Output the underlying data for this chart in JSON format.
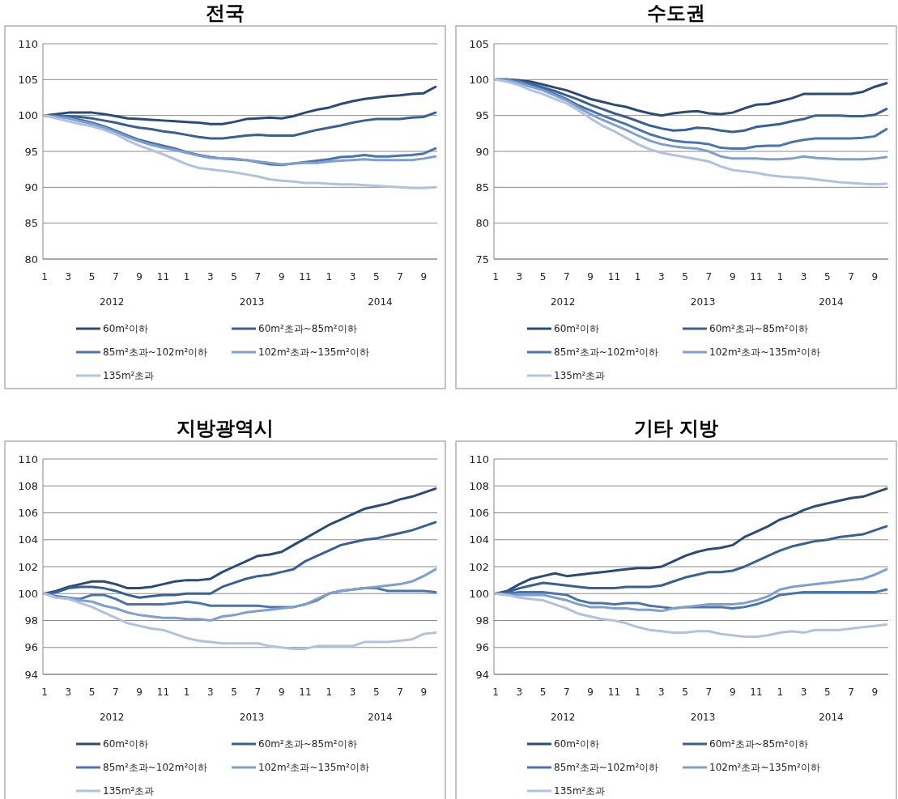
{
  "chart_data": [
    {
      "type": "line",
      "title": "전국",
      "categories": [
        "1",
        null,
        "3",
        null,
        "5",
        null,
        "7",
        null,
        "9",
        null,
        "11",
        null,
        "1",
        null,
        "3",
        null,
        "5",
        null,
        "7",
        null,
        "9",
        null,
        "11",
        null,
        "1",
        null,
        "3",
        null,
        "5",
        null,
        "7",
        null,
        "9",
        null
      ],
      "annotations": [
        "2012",
        "2013",
        "2014"
      ],
      "ylim": [
        80,
        110
      ],
      "yticks": [
        80,
        85,
        90,
        95,
        100,
        105,
        110
      ],
      "grid": "y",
      "legend": "bottom",
      "line_style": "solid",
      "series": [
        {
          "name": "60m²이하",
          "color": "#2b4a75",
          "values": [
            100,
            100.2,
            100.4,
            100.4,
            100.4,
            100.2,
            99.9,
            99.6,
            99.5,
            99.4,
            99.3,
            99.2,
            99.1,
            99.0,
            98.8,
            98.8,
            99.1,
            99.5,
            99.6,
            99.7,
            99.6,
            99.9,
            100.4,
            100.8,
            101.1,
            101.6,
            102.0,
            102.3,
            102.5,
            102.7,
            102.8,
            103.0,
            103.1,
            104.0
          ]
        },
        {
          "name": "60m²초과~85m²이하",
          "color": "#3a5f94",
          "values": [
            100,
            100,
            99.9,
            99.8,
            99.6,
            99.3,
            99.0,
            98.6,
            98.3,
            98.1,
            97.8,
            97.6,
            97.3,
            97.0,
            96.8,
            96.8,
            97.0,
            97.2,
            97.3,
            97.2,
            97.2,
            97.2,
            97.6,
            98.0,
            98.3,
            98.6,
            99.0,
            99.3,
            99.5,
            99.5,
            99.5,
            99.7,
            99.8,
            100.4
          ]
        },
        {
          "name": "85m²초과~102m²이하",
          "color": "#4a74b0",
          "values": [
            100,
            99.9,
            99.7,
            99.4,
            99.0,
            98.5,
            97.9,
            97.2,
            96.6,
            96.2,
            95.8,
            95.4,
            94.9,
            94.5,
            94.2,
            94.0,
            93.9,
            93.8,
            93.5,
            93.2,
            93.1,
            93.3,
            93.5,
            93.7,
            93.9,
            94.2,
            94.3,
            94.5,
            94.3,
            94.3,
            94.4,
            94.5,
            94.7,
            95.4
          ]
        },
        {
          "name": "102m²초과~135m²이하",
          "color": "#7f9fcc",
          "values": [
            100,
            99.8,
            99.6,
            99.2,
            98.8,
            98.3,
            97.7,
            97.0,
            96.4,
            95.9,
            95.5,
            95.2,
            94.8,
            94.4,
            94.1,
            94.0,
            94.0,
            93.8,
            93.6,
            93.4,
            93.2,
            93.3,
            93.4,
            93.4,
            93.6,
            93.7,
            93.8,
            93.9,
            93.8,
            93.8,
            93.8,
            93.8,
            94.0,
            94.3
          ]
        },
        {
          "name": "135m²초과",
          "color": "#b3c1dc",
          "values": [
            100,
            99.6,
            99.2,
            98.8,
            98.5,
            98.0,
            97.4,
            96.5,
            95.8,
            95.2,
            94.6,
            93.9,
            93.2,
            92.7,
            92.5,
            92.3,
            92.1,
            91.8,
            91.5,
            91.1,
            90.9,
            90.8,
            90.6,
            90.6,
            90.5,
            90.4,
            90.4,
            90.3,
            90.2,
            90.1,
            90.0,
            89.9,
            89.9,
            90.0
          ]
        }
      ]
    },
    {
      "type": "line",
      "title": "수도권",
      "categories": [
        "1",
        null,
        "3",
        null,
        "5",
        null,
        "7",
        null,
        "9",
        null,
        "11",
        null,
        "1",
        null,
        "3",
        null,
        "5",
        null,
        "7",
        null,
        "9",
        null,
        "11",
        null,
        "1",
        null,
        "3",
        null,
        "5",
        null,
        "7",
        null,
        "9",
        null
      ],
      "annotations": [
        "2012",
        "2013",
        "2014"
      ],
      "ylim": [
        75,
        105
      ],
      "yticks": [
        75,
        80,
        85,
        90,
        95,
        100,
        105
      ],
      "grid": "y",
      "legend": "bottom",
      "line_style": "solid",
      "series": [
        {
          "name": "60m²이하",
          "color": "#2b4a75",
          "values": [
            100,
            100,
            99.9,
            99.7,
            99.3,
            98.9,
            98.5,
            97.9,
            97.3,
            96.9,
            96.5,
            96.2,
            95.7,
            95.3,
            95.0,
            95.3,
            95.5,
            95.6,
            95.3,
            95.2,
            95.4,
            96.0,
            96.5,
            96.6,
            97.0,
            97.4,
            98.0,
            98.0,
            98.0,
            98.0,
            98.0,
            98.3,
            99.0,
            99.5
          ]
        },
        {
          "name": "60m²초과~85m²이하",
          "color": "#3a5f94",
          "values": [
            100,
            100,
            99.8,
            99.4,
            98.9,
            98.4,
            97.8,
            97.2,
            96.5,
            95.9,
            95.3,
            94.8,
            94.2,
            93.6,
            93.2,
            92.9,
            93.0,
            93.3,
            93.2,
            92.9,
            92.7,
            92.9,
            93.4,
            93.6,
            93.8,
            94.2,
            94.5,
            95.0,
            95.0,
            95.0,
            94.9,
            94.9,
            95.1,
            95.9
          ]
        },
        {
          "name": "85m²초과~102m²이하",
          "color": "#4a74b0",
          "values": [
            100,
            100,
            99.7,
            99.2,
            98.6,
            98.0,
            97.3,
            96.4,
            95.7,
            95.0,
            94.4,
            93.8,
            93.1,
            92.4,
            91.9,
            91.5,
            91.3,
            91.2,
            91.0,
            90.5,
            90.4,
            90.4,
            90.7,
            90.8,
            90.8,
            91.3,
            91.6,
            91.8,
            91.8,
            91.8,
            91.8,
            91.9,
            92.1,
            93.1
          ]
        },
        {
          "name": "102m²초과~135m²이하",
          "color": "#7f9fcc",
          "values": [
            100,
            99.9,
            99.5,
            99.0,
            98.5,
            97.8,
            97.1,
            96.1,
            95.2,
            94.4,
            93.7,
            93.0,
            92.2,
            91.5,
            91.0,
            90.7,
            90.5,
            90.4,
            90.0,
            89.3,
            89.0,
            89.0,
            89.0,
            88.9,
            88.9,
            89.0,
            89.3,
            89.1,
            89.0,
            88.9,
            88.9,
            88.9,
            89.0,
            89.2
          ]
        },
        {
          "name": "135m²초과",
          "color": "#b3c1dc",
          "values": [
            100,
            99.7,
            99.2,
            98.5,
            98.0,
            97.3,
            96.7,
            95.7,
            94.6,
            93.6,
            92.8,
            91.9,
            91.0,
            90.3,
            89.8,
            89.5,
            89.2,
            88.9,
            88.6,
            87.9,
            87.4,
            87.2,
            87.0,
            86.7,
            86.5,
            86.4,
            86.3,
            86.1,
            85.9,
            85.7,
            85.6,
            85.5,
            85.4,
            85.5
          ]
        }
      ]
    },
    {
      "type": "line",
      "title": "지방광역시",
      "categories": [
        "1",
        null,
        "3",
        null,
        "5",
        null,
        "7",
        null,
        "9",
        null,
        "11",
        null,
        "1",
        null,
        "3",
        null,
        "5",
        null,
        "7",
        null,
        "9",
        null,
        "11",
        null,
        "1",
        null,
        "3",
        null,
        "5",
        null,
        "7",
        null,
        "9",
        null
      ],
      "annotations": [
        "2012",
        "2013",
        "2014"
      ],
      "ylim": [
        94,
        110
      ],
      "yticks": [
        94,
        96,
        98,
        100,
        102,
        104,
        106,
        108,
        110
      ],
      "grid": "y",
      "legend": "bottom",
      "line_style": "solid",
      "series": [
        {
          "name": "60m²이하",
          "color": "#2b4a75",
          "values": [
            100,
            100.2,
            100.5,
            100.7,
            100.9,
            100.9,
            100.7,
            100.4,
            100.4,
            100.5,
            100.7,
            100.9,
            101.0,
            101.0,
            101.1,
            101.6,
            102.0,
            102.4,
            102.8,
            102.9,
            103.1,
            103.6,
            104.1,
            104.6,
            105.1,
            105.5,
            105.9,
            106.3,
            106.5,
            106.7,
            107.0,
            107.2,
            107.5,
            107.8
          ]
        },
        {
          "name": "60m²초과~85m²이하",
          "color": "#3a5f94",
          "values": [
            100,
            100.1,
            100.4,
            100.5,
            100.5,
            100.4,
            100.2,
            99.9,
            99.7,
            99.8,
            99.9,
            99.9,
            100.0,
            100.0,
            100.0,
            100.5,
            100.8,
            101.1,
            101.3,
            101.4,
            101.6,
            101.8,
            102.4,
            102.8,
            103.2,
            103.6,
            103.8,
            104.0,
            104.1,
            104.3,
            104.5,
            104.7,
            105.0,
            105.3
          ]
        },
        {
          "name": "85m²초과~102m²이하",
          "color": "#4a74b0",
          "values": [
            100,
            99.8,
            99.7,
            99.6,
            99.9,
            99.9,
            99.6,
            99.2,
            99.2,
            99.2,
            99.2,
            99.3,
            99.4,
            99.3,
            99.1,
            99.1,
            99.1,
            99.1,
            99.1,
            99.0,
            99.0,
            99.0,
            99.2,
            99.5,
            100.0,
            100.2,
            100.3,
            100.4,
            100.4,
            100.2,
            100.2,
            100.2,
            100.2,
            100.1
          ]
        },
        {
          "name": "102m²초과~135m²이하",
          "color": "#7f9fcc",
          "values": [
            100,
            99.7,
            99.7,
            99.5,
            99.4,
            99.1,
            98.9,
            98.6,
            98.4,
            98.3,
            98.2,
            98.2,
            98.1,
            98.1,
            98.0,
            98.3,
            98.4,
            98.6,
            98.7,
            98.8,
            98.9,
            99.0,
            99.2,
            99.6,
            100.0,
            100.2,
            100.3,
            100.4,
            100.5,
            100.6,
            100.7,
            100.9,
            101.3,
            101.8
          ]
        },
        {
          "name": "135m²초과",
          "color": "#b3c1dc",
          "values": [
            100,
            99.7,
            99.6,
            99.3,
            99.0,
            98.6,
            98.2,
            97.8,
            97.6,
            97.4,
            97.3,
            97.0,
            96.7,
            96.5,
            96.4,
            96.3,
            96.3,
            96.3,
            96.3,
            96.1,
            96.0,
            95.9,
            95.9,
            96.1,
            96.1,
            96.1,
            96.1,
            96.4,
            96.4,
            96.4,
            96.5,
            96.6,
            97.0,
            97.1
          ]
        }
      ]
    },
    {
      "type": "line",
      "title": "기타 지방",
      "categories": [
        "1",
        null,
        "3",
        null,
        "5",
        null,
        "7",
        null,
        "9",
        null,
        "11",
        null,
        "1",
        null,
        "3",
        null,
        "5",
        null,
        "7",
        null,
        "9",
        null,
        "11",
        null,
        "1",
        null,
        "3",
        null,
        "5",
        null,
        "7",
        null,
        "9",
        null
      ],
      "annotations": [
        "2012",
        "2013",
        "2014"
      ],
      "ylim": [
        94,
        110
      ],
      "yticks": [
        94,
        96,
        98,
        100,
        102,
        104,
        106,
        108,
        110
      ],
      "grid": "y",
      "legend": "bottom",
      "line_style": "solid",
      "series": [
        {
          "name": "60m²이하",
          "color": "#2b4a75",
          "values": [
            100,
            100.2,
            100.7,
            101.1,
            101.3,
            101.5,
            101.3,
            101.4,
            101.5,
            101.6,
            101.7,
            101.8,
            101.9,
            101.9,
            102.0,
            102.4,
            102.8,
            103.1,
            103.3,
            103.4,
            103.6,
            104.2,
            104.6,
            105.0,
            105.5,
            105.8,
            106.2,
            106.5,
            106.7,
            106.9,
            107.1,
            107.2,
            107.5,
            107.8
          ]
        },
        {
          "name": "60m²초과~85m²이하",
          "color": "#3a5f94",
          "values": [
            100,
            100.1,
            100.4,
            100.6,
            100.8,
            100.7,
            100.6,
            100.5,
            100.4,
            100.4,
            100.4,
            100.5,
            100.5,
            100.5,
            100.6,
            100.9,
            101.2,
            101.4,
            101.6,
            101.6,
            101.7,
            102.0,
            102.4,
            102.8,
            103.2,
            103.5,
            103.7,
            103.9,
            104.0,
            104.2,
            104.3,
            104.4,
            104.7,
            105.0
          ]
        },
        {
          "name": "85m²초과~102m²이하",
          "color": "#4a74b0",
          "values": [
            100,
            100,
            100.1,
            100.1,
            100.1,
            100.0,
            99.9,
            99.5,
            99.3,
            99.3,
            99.2,
            99.3,
            99.3,
            99.1,
            99.0,
            98.9,
            99.0,
            99.0,
            99.0,
            99.0,
            98.9,
            99.0,
            99.2,
            99.5,
            99.9,
            100.0,
            100.1,
            100.1,
            100.1,
            100.1,
            100.1,
            100.1,
            100.1,
            100.3
          ]
        },
        {
          "name": "102m²초과~135m²이하",
          "color": "#7f9fcc",
          "values": [
            100,
            99.9,
            99.9,
            99.9,
            99.9,
            99.7,
            99.5,
            99.2,
            99.0,
            99.0,
            98.9,
            98.9,
            98.8,
            98.8,
            98.7,
            98.9,
            99.0,
            99.1,
            99.2,
            99.2,
            99.2,
            99.3,
            99.5,
            99.8,
            100.3,
            100.5,
            100.6,
            100.7,
            100.8,
            100.9,
            101.0,
            101.1,
            101.4,
            101.8
          ]
        },
        {
          "name": "135m²초과",
          "color": "#b3c1dc",
          "values": [
            100,
            99.9,
            99.7,
            99.6,
            99.5,
            99.2,
            98.9,
            98.5,
            98.3,
            98.1,
            98.0,
            97.8,
            97.5,
            97.3,
            97.2,
            97.1,
            97.1,
            97.2,
            97.2,
            97.0,
            96.9,
            96.8,
            96.8,
            96.9,
            97.1,
            97.2,
            97.1,
            97.3,
            97.3,
            97.3,
            97.4,
            97.5,
            97.6,
            97.7
          ]
        }
      ]
    }
  ]
}
